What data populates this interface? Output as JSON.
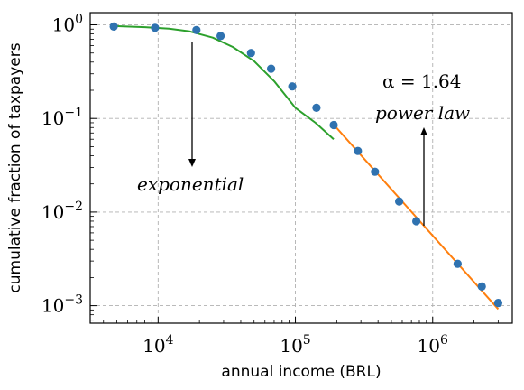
{
  "chart_data": {
    "type": "scatter",
    "xscale": "log",
    "yscale": "log",
    "xlabel": "annual income (BRL)",
    "ylabel": "cumulative fraction of taxpayers",
    "xlim": [
      3200,
      3800000
    ],
    "ylim": [
      0.00065,
      1.35
    ],
    "grid": true,
    "x_ticks": [
      {
        "value": 10000,
        "base": "10",
        "exp": "4"
      },
      {
        "value": 100000,
        "base": "10",
        "exp": "5"
      },
      {
        "value": 1000000,
        "base": "10",
        "exp": "6"
      }
    ],
    "y_ticks": [
      {
        "value": 1,
        "base": "10",
        "exp": "0"
      },
      {
        "value": 0.1,
        "base": "10",
        "exp": "−1"
      },
      {
        "value": 0.01,
        "base": "10",
        "exp": "−2"
      },
      {
        "value": 0.001,
        "base": "10",
        "exp": "−3"
      }
    ],
    "points": {
      "color": "#2f72b0",
      "x": [
        4750,
        9500,
        19000,
        28500,
        47500,
        66500,
        95000,
        142500,
        190000,
        285000,
        380000,
        570000,
        760000,
        1520000,
        2280000,
        3000000
      ],
      "y": [
        0.96,
        0.93,
        0.88,
        0.76,
        0.5,
        0.34,
        0.22,
        0.13,
        0.085,
        0.045,
        0.027,
        0.013,
        0.008,
        0.0028,
        0.0016,
        0.00107
      ]
    },
    "fits": [
      {
        "label": "exponential",
        "color": "#2ca02c",
        "x": [
          4750,
          8000,
          12000,
          17000,
          25000,
          35000,
          50000,
          70000,
          100000,
          140000,
          190000
        ],
        "y": [
          0.97,
          0.945,
          0.91,
          0.85,
          0.73,
          0.58,
          0.41,
          0.25,
          0.13,
          0.09,
          0.06
        ]
      },
      {
        "label": "power law",
        "color": "#ff7f0e",
        "x": [
          190000,
          3000000
        ],
        "y": [
          0.086,
          0.00092
        ]
      }
    ],
    "annotations": {
      "exponential": "exponential",
      "power_law": "power law",
      "alpha": "α = 1.64"
    }
  }
}
